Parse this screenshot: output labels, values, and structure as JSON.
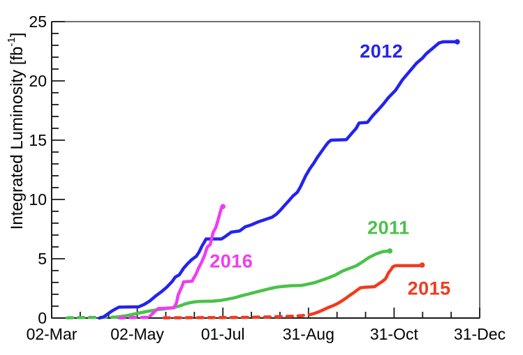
{
  "page": {
    "background": "#ffffff"
  },
  "presentation": {
    "ylabel_prefix": "Integrated Luminosity [fb",
    "ylabel_sup": "-1",
    "ylabel_suffix": "]",
    "frame_color": "#4a4a4a",
    "axis_color": "#1a1a1a",
    "text_color": "#000000",
    "tick_label_font_px": 23,
    "x_tick_labels_baseline_y": 487
  },
  "chart_data": {
    "type": "line",
    "title": "",
    "xlabel": "",
    "ylabel": "Integrated Luminosity [fb^-1]",
    "x_axis": {
      "tick_labels": [
        "02-Mar",
        "02-May",
        "01-Jul",
        "31-Aug",
        "31-Oct",
        "31-Dec"
      ],
      "tick_days": [
        0,
        61,
        122,
        183,
        244,
        305
      ],
      "range_days": [
        0,
        305
      ],
      "minor_divisions_per_interval": 3
    },
    "y_axis": {
      "range": [
        0,
        25
      ],
      "major_ticks": [
        0,
        5,
        10,
        15,
        20,
        25
      ],
      "minor_step": 1
    },
    "grid": false,
    "legend": "inline-colored-year-labels",
    "x_unit": "days since 02-Mar",
    "y_unit": "fb^-1",
    "series": [
      {
        "name": "2012",
        "color": "#2323ee",
        "final_value": 23.3,
        "dashed_until_day": 0,
        "label_anchor": {
          "day": 235,
          "value": 22.5
        },
        "points": [
          [
            34,
            0
          ],
          [
            37,
            0.1
          ],
          [
            40,
            0.35
          ],
          [
            43,
            0.6
          ],
          [
            46,
            0.8
          ],
          [
            48,
            0.92
          ],
          [
            62,
            0.95
          ],
          [
            66,
            1.15
          ],
          [
            70,
            1.45
          ],
          [
            74,
            1.85
          ],
          [
            78,
            2.2
          ],
          [
            82,
            2.6
          ],
          [
            86,
            3.1
          ],
          [
            88,
            3.45
          ],
          [
            91,
            3.65
          ],
          [
            94,
            4.2
          ],
          [
            97,
            4.6
          ],
          [
            100,
            4.95
          ],
          [
            103,
            5.2
          ],
          [
            105,
            5.55
          ],
          [
            107,
            6.05
          ],
          [
            109,
            6.45
          ],
          [
            110,
            6.67
          ],
          [
            121,
            6.67
          ],
          [
            124,
            6.9
          ],
          [
            128,
            7.25
          ],
          [
            134,
            7.35
          ],
          [
            138,
            7.7
          ],
          [
            142,
            7.85
          ],
          [
            147,
            8.1
          ],
          [
            152,
            8.3
          ],
          [
            157,
            8.5
          ],
          [
            160,
            8.75
          ],
          [
            163,
            9.1
          ],
          [
            166,
            9.5
          ],
          [
            169,
            9.9
          ],
          [
            172,
            10.3
          ],
          [
            175,
            10.6
          ],
          [
            177,
            11.0
          ],
          [
            179,
            11.5
          ],
          [
            181,
            12.0
          ],
          [
            184,
            12.6
          ],
          [
            187,
            13.1
          ],
          [
            189,
            13.5
          ],
          [
            192,
            14.0
          ],
          [
            195,
            14.5
          ],
          [
            197,
            14.8
          ],
          [
            199,
            15.0
          ],
          [
            210,
            15.05
          ],
          [
            214,
            15.6
          ],
          [
            217,
            16.0
          ],
          [
            219,
            16.45
          ],
          [
            225,
            16.5
          ],
          [
            229,
            17.1
          ],
          [
            233,
            17.6
          ],
          [
            236,
            18.0
          ],
          [
            240,
            18.6
          ],
          [
            245,
            19.2
          ],
          [
            250,
            20.1
          ],
          [
            255,
            20.8
          ],
          [
            260,
            21.5
          ],
          [
            264,
            21.9
          ],
          [
            267,
            22.3
          ],
          [
            272,
            22.8
          ],
          [
            276,
            23.2
          ],
          [
            279,
            23.3
          ],
          [
            289,
            23.3
          ]
        ]
      },
      {
        "name": "2011",
        "color": "#49c249",
        "final_value": 5.66,
        "dashed_until_day": 46,
        "label_anchor": {
          "day": 240,
          "value": 7.6
        },
        "points": [
          [
            11,
            0.02
          ],
          [
            20,
            0.04
          ],
          [
            32,
            0.05
          ],
          [
            46,
            0.08
          ],
          [
            50,
            0.14
          ],
          [
            54,
            0.22
          ],
          [
            58,
            0.32
          ],
          [
            63,
            0.44
          ],
          [
            68,
            0.56
          ],
          [
            73,
            0.66
          ],
          [
            78,
            0.74
          ],
          [
            83,
            0.82
          ],
          [
            86,
            0.87
          ],
          [
            89,
            0.95
          ],
          [
            92,
            1.05
          ],
          [
            95,
            1.18
          ],
          [
            98,
            1.28
          ],
          [
            101,
            1.35
          ],
          [
            105,
            1.4
          ],
          [
            115,
            1.43
          ],
          [
            120,
            1.48
          ],
          [
            125,
            1.58
          ],
          [
            130,
            1.7
          ],
          [
            135,
            1.87
          ],
          [
            140,
            2.02
          ],
          [
            145,
            2.17
          ],
          [
            150,
            2.32
          ],
          [
            155,
            2.47
          ],
          [
            160,
            2.6
          ],
          [
            165,
            2.67
          ],
          [
            170,
            2.72
          ],
          [
            178,
            2.75
          ],
          [
            183,
            2.87
          ],
          [
            187,
            2.97
          ],
          [
            192,
            3.17
          ],
          [
            197,
            3.38
          ],
          [
            202,
            3.62
          ],
          [
            207,
            3.95
          ],
          [
            212,
            4.18
          ],
          [
            217,
            4.4
          ],
          [
            221,
            4.7
          ],
          [
            226,
            5.1
          ],
          [
            231,
            5.4
          ],
          [
            236,
            5.6
          ],
          [
            241,
            5.66
          ]
        ]
      },
      {
        "name": "2015",
        "color": "#f23a1e",
        "final_value": 4.47,
        "dashed_until_day": 184,
        "label_anchor": {
          "day": 269,
          "value": 2.45
        },
        "points": [
          [
            80,
            0.02
          ],
          [
            100,
            0.03
          ],
          [
            125,
            0.04
          ],
          [
            140,
            0.06
          ],
          [
            152,
            0.09
          ],
          [
            162,
            0.12
          ],
          [
            172,
            0.16
          ],
          [
            178,
            0.2
          ],
          [
            184,
            0.28
          ],
          [
            188,
            0.42
          ],
          [
            191,
            0.56
          ],
          [
            194,
            0.72
          ],
          [
            197,
            0.88
          ],
          [
            200,
            1.02
          ],
          [
            203,
            1.18
          ],
          [
            206,
            1.38
          ],
          [
            209,
            1.62
          ],
          [
            212,
            1.88
          ],
          [
            215,
            2.12
          ],
          [
            218,
            2.38
          ],
          [
            220,
            2.55
          ],
          [
            224,
            2.6
          ],
          [
            230,
            2.64
          ],
          [
            233,
            2.88
          ],
          [
            236,
            3.12
          ],
          [
            238,
            3.32
          ],
          [
            240,
            3.82
          ],
          [
            242,
            4.12
          ],
          [
            243,
            4.32
          ],
          [
            245,
            4.42
          ],
          [
            263,
            4.42
          ],
          [
            264,
            4.47
          ]
        ]
      },
      {
        "name": "2016",
        "color": "#f03cf0",
        "final_value": 9.4,
        "dashed_until_day": 70,
        "label_anchor": {
          "day": 128,
          "value": 4.75
        },
        "points": [
          [
            48,
            0.02
          ],
          [
            58,
            0.04
          ],
          [
            68,
            0.06
          ],
          [
            70,
            0.15
          ],
          [
            72,
            0.38
          ],
          [
            74,
            0.62
          ],
          [
            76,
            0.8
          ],
          [
            87,
            0.86
          ],
          [
            89,
            1.3
          ],
          [
            90,
            1.9
          ],
          [
            92,
            2.45
          ],
          [
            93,
            2.7
          ],
          [
            94,
            3.05
          ],
          [
            100,
            3.1
          ],
          [
            103,
            3.75
          ],
          [
            105,
            4.3
          ],
          [
            107,
            4.75
          ],
          [
            109,
            5.3
          ],
          [
            110,
            5.7
          ],
          [
            111,
            6.0
          ],
          [
            113,
            6.2
          ],
          [
            114,
            6.7
          ],
          [
            115,
            7.2
          ],
          [
            117,
            7.65
          ],
          [
            118,
            8.05
          ],
          [
            119,
            8.45
          ],
          [
            120,
            8.9
          ],
          [
            121,
            9.3
          ],
          [
            122,
            9.4
          ]
        ]
      }
    ]
  }
}
